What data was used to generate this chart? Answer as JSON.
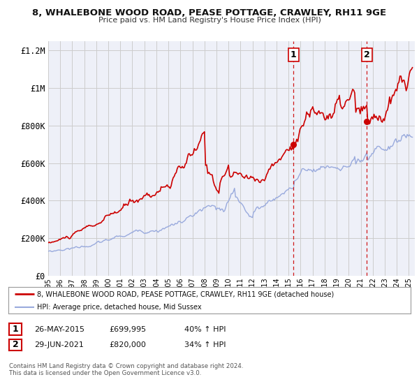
{
  "title": "8, WHALEBONE WOOD ROAD, PEASE POTTAGE, CRAWLEY, RH11 9GE",
  "subtitle": "Price paid vs. HM Land Registry's House Price Index (HPI)",
  "legend_line1": "8, WHALEBONE WOOD ROAD, PEASE POTTAGE, CRAWLEY, RH11 9GE (detached house)",
  "legend_line2": "HPI: Average price, detached house, Mid Sussex",
  "sale1_date": "26-MAY-2015",
  "sale1_price": "£699,995",
  "sale1_hpi": "40% ↑ HPI",
  "sale2_date": "29-JUN-2021",
  "sale2_price": "£820,000",
  "sale2_hpi": "34% ↑ HPI",
  "footer": "Contains HM Land Registry data © Crown copyright and database right 2024.\nThis data is licensed under the Open Government Licence v3.0.",
  "red_color": "#cc0000",
  "blue_color": "#99aadd",
  "vline_color": "#cc0000",
  "dot_color": "#cc0000",
  "background_color": "#eef0f8",
  "grid_color": "#cccccc",
  "ylim": [
    0,
    1250000
  ],
  "yticks": [
    0,
    200000,
    400000,
    600000,
    800000,
    1000000,
    1200000
  ],
  "ytick_labels": [
    "£0",
    "£200K",
    "£400K",
    "£600K",
    "£800K",
    "£1M",
    "£1.2M"
  ],
  "sale1_x": 2015.4,
  "sale1_y": 699995,
  "sale2_x": 2021.5,
  "sale2_y": 820000,
  "xmin": 1995,
  "xmax": 2025.5
}
